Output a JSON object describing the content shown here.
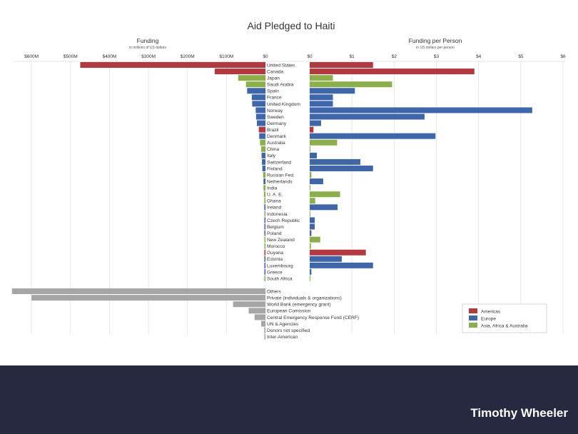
{
  "chart_data": {
    "type": "bar",
    "title": "Aid Pledged to Haiti",
    "left_panel": {
      "title": "Funding",
      "subtitle": "in millions of US dollars",
      "ticks": [
        -600,
        -500,
        -400,
        -300,
        -200,
        -100,
        0
      ],
      "tick_labels": [
        "$600M",
        "$500M",
        "$400M",
        "$300M",
        "$200M",
        "$100M",
        "$0"
      ],
      "xlim": [
        0,
        655
      ]
    },
    "right_panel": {
      "title": "Funding per Person",
      "subtitle": "in US dollars per person",
      "ticks": [
        0,
        1,
        2,
        3,
        4,
        5,
        6
      ],
      "tick_labels": [
        "$0",
        "$1",
        "$2",
        "$3",
        "$4",
        "$5",
        "$6"
      ],
      "xlim": [
        0,
        6
      ]
    },
    "legend": {
      "position": "bottom-right",
      "entries": [
        {
          "key": "americas",
          "label": "Americas"
        },
        {
          "key": "europe",
          "label": "Europe"
        },
        {
          "key": "asia",
          "label": "Asia, Africa & Australia"
        }
      ]
    },
    "colors": {
      "americas": "#b5383f",
      "europe": "#3e67ab",
      "asia": "#8bb04a",
      "other": "#a6a6a6",
      "grid": "#dedede"
    },
    "countries": [
      {
        "name": "United States",
        "region": "americas",
        "funding": 475,
        "per_person": 1.5
      },
      {
        "name": "Canada",
        "region": "americas",
        "funding": 130,
        "per_person": 3.9
      },
      {
        "name": "Japan",
        "region": "asia",
        "funding": 70,
        "per_person": 0.55
      },
      {
        "name": "Saudi Arabia",
        "region": "asia",
        "funding": 50,
        "per_person": 1.95
      },
      {
        "name": "Spain",
        "region": "europe",
        "funding": 47,
        "per_person": 1.07
      },
      {
        "name": "France",
        "region": "europe",
        "funding": 35,
        "per_person": 0.55
      },
      {
        "name": "United Kingdom",
        "region": "europe",
        "funding": 34,
        "per_person": 0.55
      },
      {
        "name": "Norway",
        "region": "europe",
        "funding": 25,
        "per_person": 5.27
      },
      {
        "name": "Sweden",
        "region": "europe",
        "funding": 24,
        "per_person": 2.72
      },
      {
        "name": "Germany",
        "region": "europe",
        "funding": 22,
        "per_person": 0.27
      },
      {
        "name": "Brazil",
        "region": "americas",
        "funding": 17,
        "per_person": 0.09
      },
      {
        "name": "Denmark",
        "region": "europe",
        "funding": 16,
        "per_person": 2.98
      },
      {
        "name": "Australia",
        "region": "asia",
        "funding": 14,
        "per_person": 0.65
      },
      {
        "name": "China",
        "region": "asia",
        "funding": 11,
        "per_person": 0.01
      },
      {
        "name": "Italy",
        "region": "europe",
        "funding": 10,
        "per_person": 0.17
      },
      {
        "name": "Switzerland",
        "region": "europe",
        "funding": 9,
        "per_person": 1.2
      },
      {
        "name": "Finland",
        "region": "europe",
        "funding": 8,
        "per_person": 1.5
      },
      {
        "name": "Russian Fed.",
        "region": "asia",
        "funding": 6,
        "per_person": 0.04
      },
      {
        "name": "Netherlands",
        "region": "europe",
        "funding": 5,
        "per_person": 0.32
      },
      {
        "name": "India",
        "region": "asia",
        "funding": 5,
        "per_person": 0.01
      },
      {
        "name": "U. A. E.",
        "region": "asia",
        "funding": 4,
        "per_person": 0.72
      },
      {
        "name": "Ghana",
        "region": "asia",
        "funding": 3,
        "per_person": 0.13
      },
      {
        "name": "Ireland",
        "region": "europe",
        "funding": 3,
        "per_person": 0.66
      },
      {
        "name": "Indonesia",
        "region": "asia",
        "funding": 2,
        "per_person": 0.01
      },
      {
        "name": "Czech Republic",
        "region": "europe",
        "funding": 2,
        "per_person": 0.12
      },
      {
        "name": "Belgium",
        "region": "europe",
        "funding": 2,
        "per_person": 0.12
      },
      {
        "name": "Poland",
        "region": "europe",
        "funding": 1.5,
        "per_person": 0.04
      },
      {
        "name": "New Zealand",
        "region": "asia",
        "funding": 1.5,
        "per_person": 0.25
      },
      {
        "name": "Morocco",
        "region": "asia",
        "funding": 1,
        "per_person": 0.03
      },
      {
        "name": "Guyana",
        "region": "americas",
        "funding": 1,
        "per_person": 1.33
      },
      {
        "name": "Estonia",
        "region": "europe",
        "funding": 1,
        "per_person": 0.76
      },
      {
        "name": "Luxembourg",
        "region": "europe",
        "funding": 0.7,
        "per_person": 1.5
      },
      {
        "name": "Greece",
        "region": "europe",
        "funding": 0.5,
        "per_person": 0.04
      },
      {
        "name": "South Africa",
        "region": "asia",
        "funding": 0.5,
        "per_person": 0.01
      }
    ],
    "others": [
      {
        "name": "Others",
        "funding": 650
      },
      {
        "name": "Private (individuals & organizations)",
        "funding": 600
      },
      {
        "name": "World Bank (emergency grant)",
        "funding": 83
      },
      {
        "name": "European Comission",
        "funding": 43
      },
      {
        "name": "Central Emergency Response Fund (CERF)",
        "funding": 28
      },
      {
        "name": "UN & Agencies",
        "funding": 11
      },
      {
        "name": "Donors not specified",
        "funding": 3
      },
      {
        "name": "Inter-American",
        "funding": 1
      }
    ]
  },
  "footer": {
    "author": "Timothy Wheeler"
  }
}
